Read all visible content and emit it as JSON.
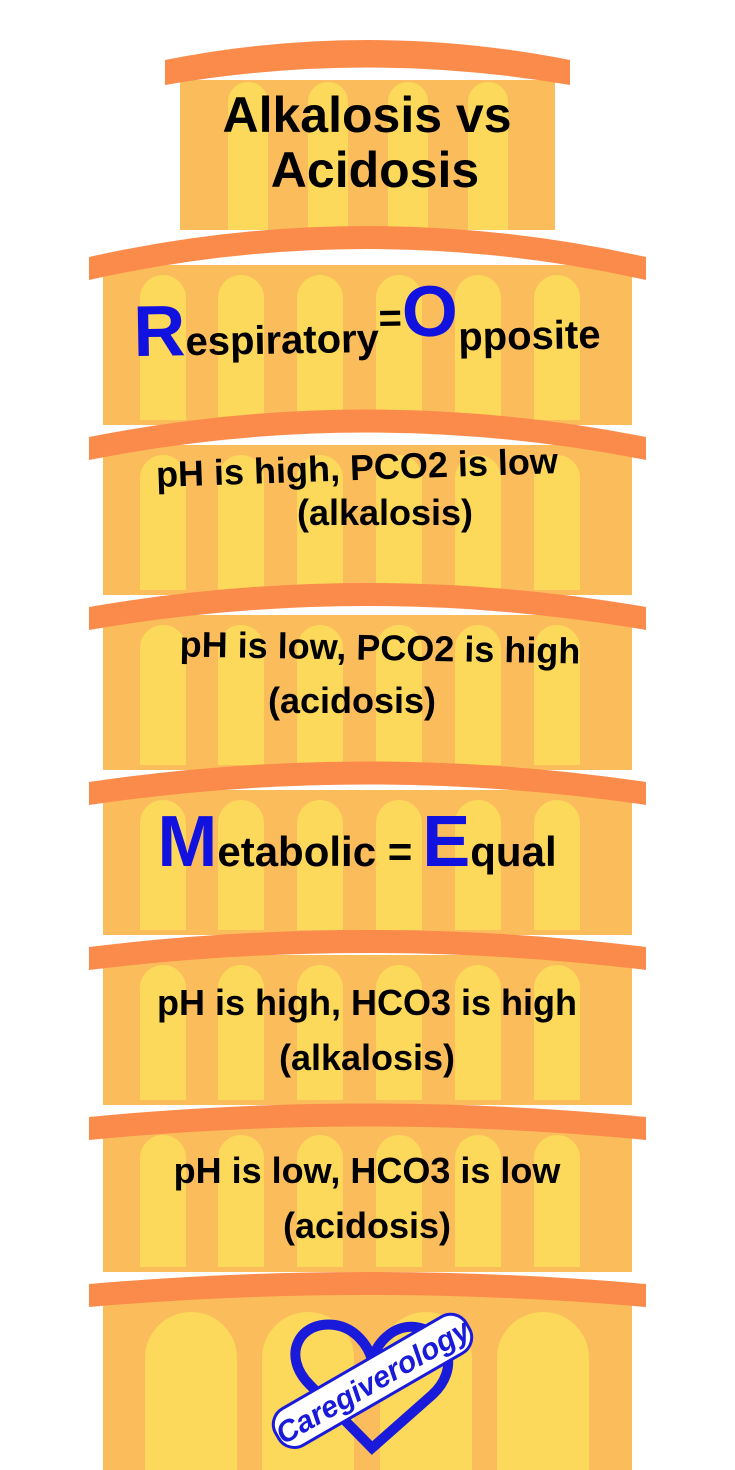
{
  "title": {
    "lines": [
      "Alkalosis vs",
      "Acidosis"
    ]
  },
  "respiratory": {
    "initial": "R",
    "rest": "espiratory",
    "equals": "=",
    "initial2": "O",
    "rest2": "pposite"
  },
  "respiratory_rules": [
    {
      "line1": "pH is high, PCO2 is low",
      "line2": "(alkalosis)"
    },
    {
      "line1": "pH is low, PCO2 is high",
      "line2": "(acidosis)"
    }
  ],
  "metabolic": {
    "initial": "M",
    "rest": "etabolic =",
    "initial2": "E",
    "rest2": "qual"
  },
  "metabolic_rules": [
    {
      "line1": "pH is high, HCO3 is high",
      "line2": "(alkalosis)"
    },
    {
      "line1": "pH is low, HCO3 is low",
      "line2": "(acidosis)"
    }
  ],
  "logo": {
    "text": "Caregiverology"
  }
}
